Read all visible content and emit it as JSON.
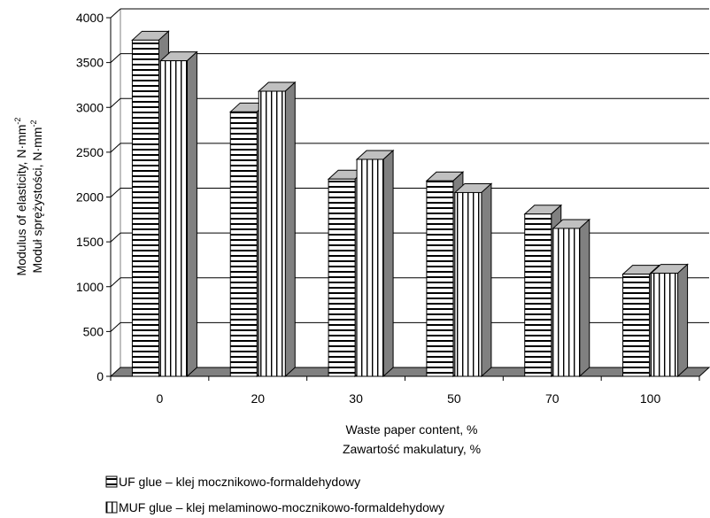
{
  "chart_data": {
    "type": "bar",
    "style": "3d-column",
    "categories": [
      "0",
      "20",
      "30",
      "50",
      "70",
      "100"
    ],
    "series": [
      {
        "name": "UF glue – klej mocznikowo-formaldehydowy",
        "pattern": "horizontal-stripes",
        "values": [
          3750,
          2950,
          2200,
          2180,
          1810,
          1140
        ]
      },
      {
        "name": "MUF glue – klej melaminowo-mocznikowo-formaldehydowy",
        "pattern": "vertical-stripes",
        "values": [
          3520,
          3180,
          2420,
          2050,
          1650,
          1150
        ]
      }
    ],
    "ylim": [
      0,
      4000
    ],
    "yticks": [
      "0",
      "500",
      "1000",
      "1500",
      "2000",
      "2500",
      "3000",
      "3500",
      "4000"
    ],
    "ylabel_line1": "Modulus of elasticity, N·mm",
    "ylabel_line2": "Moduł sprężystości, N·mm",
    "ylabel_superscript": "-2",
    "xlabel_line1": "Waste paper content, %",
    "xlabel_line2": "Zawartość makulatury, %",
    "grid": "horizontal",
    "legend_position": "bottom-left",
    "colors": {
      "bar_face": "#ffffff",
      "bar_side": "#808080",
      "bar_top": "#c0c0c0",
      "floor": "#808080",
      "grid": "#000000"
    }
  }
}
